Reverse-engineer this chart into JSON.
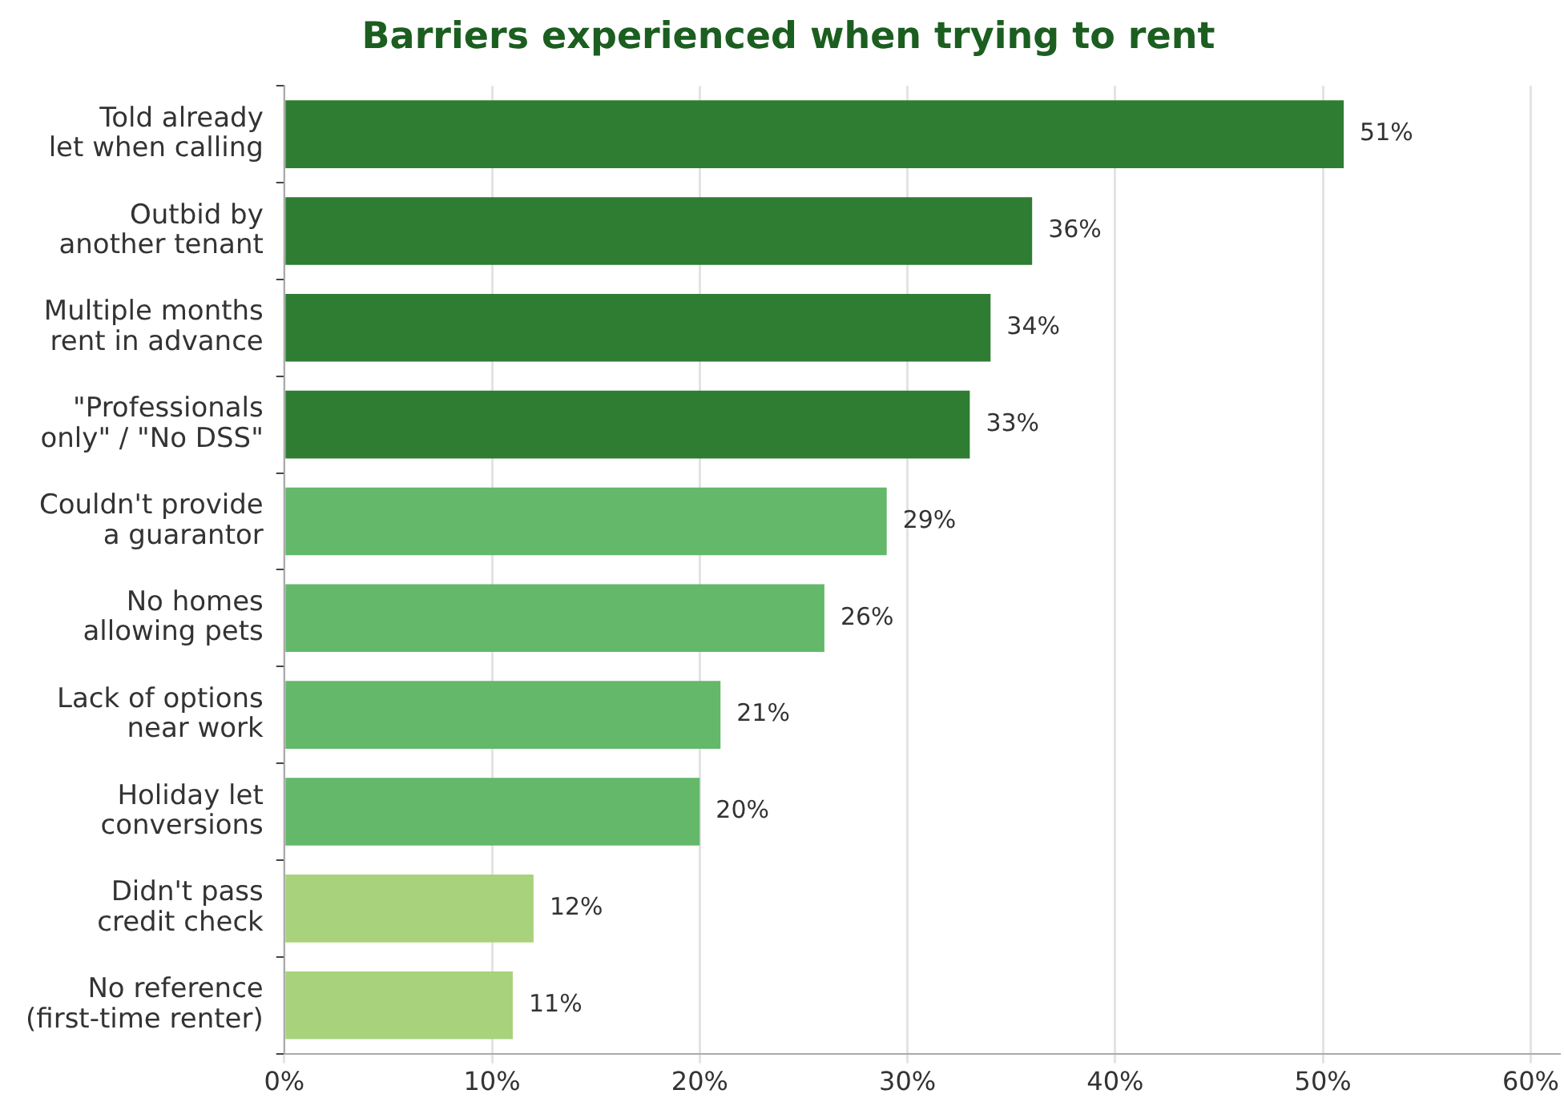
{
  "chart_data": {
    "type": "bar",
    "orientation": "horizontal",
    "title": "Barriers experienced when trying to rent",
    "categories": [
      "Told already let when calling",
      "Outbid by another tenant",
      "Multiple months rent in advance",
      "\"Professionals only\" / \"No DSS\"",
      "Couldn't provide a guarantor",
      "No homes allowing pets",
      "Lack of options near work",
      "Holiday let conversions",
      "Didn't pass credit check",
      "No reference (first-time renter)"
    ],
    "values": [
      51,
      36,
      34,
      33,
      29,
      26,
      21,
      20,
      12,
      11
    ],
    "colors": [
      "#2e7d32",
      "#2e7d32",
      "#2e7d32",
      "#2e7d32",
      "#63b86a",
      "#63b86a",
      "#63b86a",
      "#63b86a",
      "#a9d27c",
      "#a9d27c"
    ],
    "value_labels": [
      "51%",
      "36%",
      "34%",
      "33%",
      "29%",
      "26%",
      "21%",
      "20%",
      "12%",
      "11%"
    ],
    "xlim": [
      0,
      61.4
    ],
    "xticks": [
      {
        "value": 0,
        "label": "0%"
      },
      {
        "value": 10,
        "label": "10%"
      },
      {
        "value": 20,
        "label": "20%"
      },
      {
        "value": 30,
        "label": "30%"
      },
      {
        "value": 40,
        "label": "40%"
      },
      {
        "value": 50,
        "label": "50%"
      },
      {
        "value": 60,
        "label": "60%"
      }
    ],
    "grid": "x",
    "legend": false
  }
}
